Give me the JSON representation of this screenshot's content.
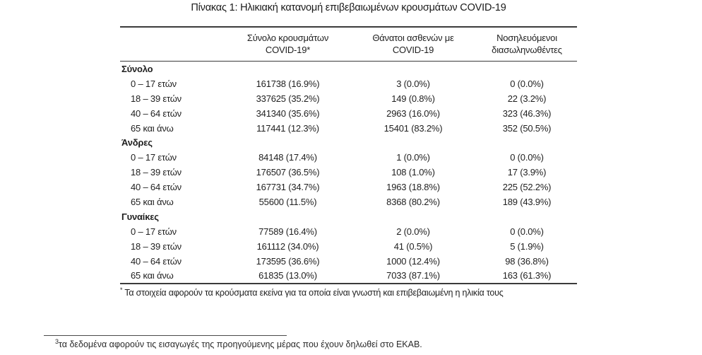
{
  "title": "Πίνακας 1: Ηλικιακή κατανομή επιβεβαιωμένων κρουσμάτων COVID-19",
  "table": {
    "columns": [
      {
        "line1": "Σύνολο κρουσμάτων",
        "line2": "COVID-19*"
      },
      {
        "line1": "Θάνατοι ασθενών με",
        "line2": "COVID-19"
      },
      {
        "line1": "Νοσηλευόμενοι",
        "line2": "διασωληνωθέντες"
      }
    ],
    "sections": [
      {
        "label": "Σύνολο",
        "rows": [
          {
            "label": "0 – 17 ετών",
            "cases": "161738 (16.9%)",
            "deaths": "3 (0.0%)",
            "intubated": "0 (0.0%)"
          },
          {
            "label": "18 – 39 ετών",
            "cases": "337625 (35.2%)",
            "deaths": "149 (0.8%)",
            "intubated": "22 (3.2%)"
          },
          {
            "label": "40 – 64 ετών",
            "cases": "341340 (35.6%)",
            "deaths": "2963 (16.0%)",
            "intubated": "323 (46.3%)"
          },
          {
            "label": "65 και άνω",
            "cases": "117441 (12.3%)",
            "deaths": "15401 (83.2%)",
            "intubated": "352 (50.5%)"
          }
        ]
      },
      {
        "label": "Άνδρες",
        "rows": [
          {
            "label": "0 – 17 ετών",
            "cases": "84148 (17.4%)",
            "deaths": "1 (0.0%)",
            "intubated": "0 (0.0%)"
          },
          {
            "label": "18 – 39 ετών",
            "cases": "176507 (36.5%)",
            "deaths": "108 (1.0%)",
            "intubated": "17 (3.9%)"
          },
          {
            "label": "40 – 64 ετών",
            "cases": "167731 (34.7%)",
            "deaths": "1963 (18.8%)",
            "intubated": "225 (52.2%)"
          },
          {
            "label": "65 και άνω",
            "cases": "55600 (11.5%)",
            "deaths": "8368 (80.2%)",
            "intubated": "189 (43.9%)"
          }
        ]
      },
      {
        "label": "Γυναίκες",
        "rows": [
          {
            "label": "0 – 17 ετών",
            "cases": "77589 (16.4%)",
            "deaths": "2 (0.0%)",
            "intubated": "0 (0.0%)"
          },
          {
            "label": "18 – 39 ετών",
            "cases": "161112 (34.0%)",
            "deaths": "41 (0.5%)",
            "intubated": "5 (1.9%)"
          },
          {
            "label": "40 – 64 ετών",
            "cases": "173595 (36.6%)",
            "deaths": "1000 (12.4%)",
            "intubated": "98 (36.8%)"
          },
          {
            "label": "65 και άνω",
            "cases": "61835 (13.0%)",
            "deaths": "7033 (87.1%)",
            "intubated": "163 (61.3%)"
          }
        ]
      }
    ],
    "footnote_marker": "*",
    "footnote_text": "Τα στοιχεία αφορούν τα κρούσματα εκείνα για τα οποία είναι γνωστή και επιβεβαιωμένη η ηλικία τους"
  },
  "page_footnote": {
    "marker": "3",
    "text": "τα δεδομένα αφορούν τις εισαγωγές της προηγούμενης μέρας που έχουν δηλωθεί στο ΕΚΑΒ."
  },
  "colors": {
    "text": "#1f1f1f",
    "border": "#3b3b3b"
  }
}
